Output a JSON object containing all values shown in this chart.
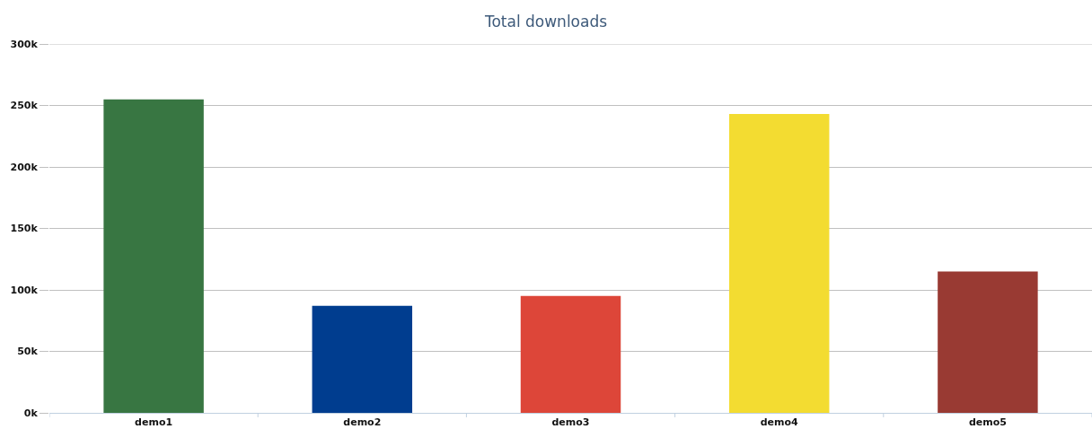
{
  "chart_data": {
    "type": "bar",
    "title": "Total downloads",
    "categories": [
      "demo1",
      "demo2",
      "demo3",
      "demo4",
      "demo5"
    ],
    "values": [
      255000,
      87000,
      95000,
      243000,
      115000
    ],
    "colors": [
      "#387642",
      "#003d8f",
      "#dd4639",
      "#f3dc31",
      "#993a33"
    ],
    "ylim": [
      0,
      300000
    ],
    "yticks": [
      {
        "value": 0,
        "label": "0k"
      },
      {
        "value": 50000,
        "label": "50k"
      },
      {
        "value": 100000,
        "label": "100k"
      },
      {
        "value": 150000,
        "label": "150k"
      },
      {
        "value": 200000,
        "label": "200k"
      },
      {
        "value": 250000,
        "label": "250k"
      },
      {
        "value": 300000,
        "label": "300k"
      }
    ],
    "grid": "y"
  }
}
